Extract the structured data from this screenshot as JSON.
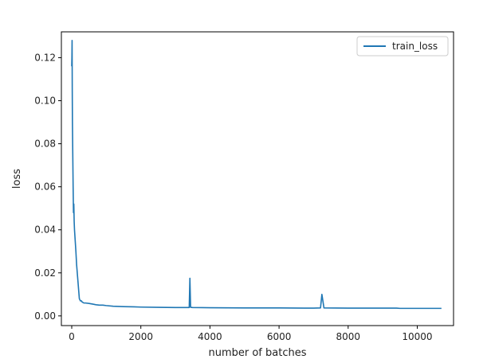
{
  "chart_data": {
    "type": "line",
    "title": "",
    "xlabel": "number of batches",
    "ylabel": "loss",
    "xlim": [
      -300,
      11050
    ],
    "ylim": [
      -0.0045,
      0.132
    ],
    "xticks": [
      0,
      2000,
      4000,
      6000,
      8000,
      10000
    ],
    "xtick_labels": [
      "0",
      "2000",
      "4000",
      "6000",
      "8000",
      "10000"
    ],
    "yticks": [
      0.0,
      0.02,
      0.04,
      0.06,
      0.08,
      0.1,
      0.12
    ],
    "ytick_labels": [
      "0.00",
      "0.02",
      "0.04",
      "0.06",
      "0.08",
      "0.10",
      "0.12"
    ],
    "grid": false,
    "legend": {
      "position": "top-right",
      "entries": [
        "train_loss"
      ]
    },
    "series": [
      {
        "name": "train_loss",
        "color": "#1f77b4",
        "x": [
          0,
          5,
          10,
          15,
          20,
          30,
          40,
          50,
          60,
          70,
          80,
          100,
          120,
          140,
          160,
          180,
          200,
          220,
          250,
          280,
          300,
          350,
          400,
          500,
          600,
          700,
          800,
          900,
          1000,
          1200,
          1500,
          1800,
          2000,
          2500,
          3000,
          3400,
          3420,
          3440,
          3500,
          4000,
          5000,
          6000,
          7000,
          7200,
          7240,
          7300,
          8000,
          9000,
          9400,
          9500,
          10000,
          10500,
          10700
        ],
        "y": [
          0.116,
          0.12,
          0.128,
          0.105,
          0.09,
          0.075,
          0.06,
          0.048,
          0.052,
          0.044,
          0.04,
          0.035,
          0.03,
          0.024,
          0.02,
          0.016,
          0.012,
          0.008,
          0.007,
          0.007,
          0.0065,
          0.006,
          0.006,
          0.0058,
          0.0055,
          0.0052,
          0.005,
          0.005,
          0.0048,
          0.0045,
          0.0043,
          0.0042,
          0.0041,
          0.004,
          0.0039,
          0.0039,
          0.0175,
          0.004,
          0.0039,
          0.0038,
          0.0037,
          0.0037,
          0.0036,
          0.0037,
          0.01,
          0.0037,
          0.0036,
          0.0036,
          0.0036,
          0.0035,
          0.0035,
          0.0035,
          0.0035
        ]
      }
    ]
  }
}
